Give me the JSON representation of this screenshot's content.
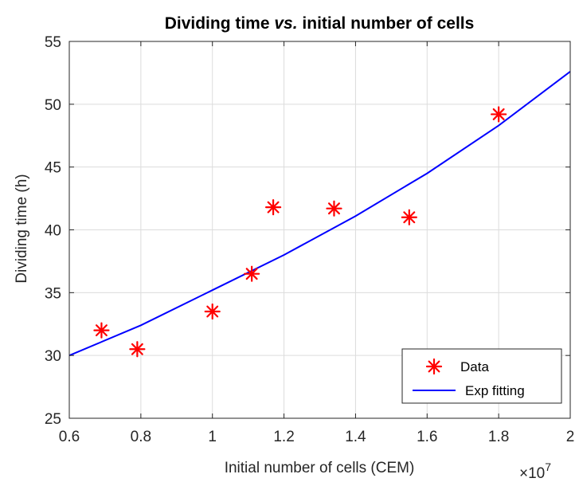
{
  "chart_data": {
    "type": "scatter",
    "title": {
      "before": "Dividing time ",
      "italic": "vs.",
      "after": " initial number of cells"
    },
    "xlabel": "Initial number of cells (CEM)",
    "ylabel": "Dividing time (h)",
    "x_exponent": "7",
    "x_exponent_prefix": "×10",
    "xlim": [
      0.6,
      2.0
    ],
    "ylim": [
      25,
      55
    ],
    "x_ticks": [
      "0.6",
      "0.8",
      "1",
      "1.2",
      "1.4",
      "1.6",
      "1.8",
      "2"
    ],
    "y_ticks": [
      "25",
      "30",
      "35",
      "40",
      "45",
      "50",
      "55"
    ],
    "grid": true,
    "legend_position": "bottom-right",
    "series": [
      {
        "name": "Data",
        "kind": "scatter",
        "marker": "asterisk",
        "color": "#ff0000",
        "x": [
          0.69,
          0.79,
          1.0,
          1.11,
          1.17,
          1.34,
          1.55,
          1.8
        ],
        "y": [
          32.0,
          30.5,
          33.5,
          36.5,
          41.8,
          41.7,
          41.0,
          49.2
        ]
      },
      {
        "name": "Exp fitting",
        "kind": "line",
        "color": "#0000ff",
        "x": [
          0.6,
          0.8,
          1.0,
          1.2,
          1.4,
          1.6,
          1.8,
          2.0
        ],
        "y": [
          30.0,
          32.4,
          35.2,
          38.0,
          41.1,
          44.5,
          48.3,
          52.6
        ]
      }
    ]
  }
}
